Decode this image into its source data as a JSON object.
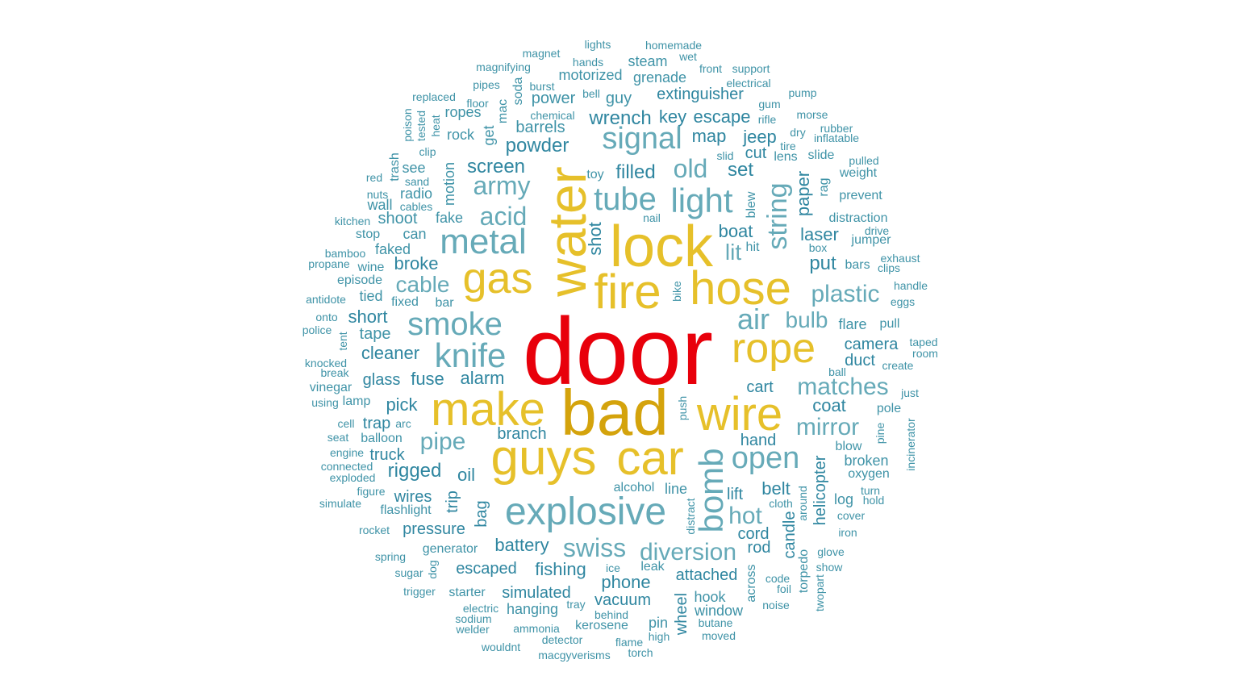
{
  "palette": {
    "top": "#e8000b",
    "gold_dark": "#d4a30c",
    "gold": "#e6c02a",
    "teal_light": "#66aab8",
    "teal": "#3f93a7",
    "teal_dark": "#2f86a0"
  },
  "words": [
    {
      "text": "door",
      "tier": "top"
    },
    {
      "text": "bad",
      "tier": "gold_dark"
    },
    {
      "text": "lock",
      "tier": "gold"
    },
    {
      "text": "water",
      "tier": "gold"
    },
    {
      "text": "fire",
      "tier": "gold"
    },
    {
      "text": "hose",
      "tier": "gold"
    },
    {
      "text": "guys",
      "tier": "gold"
    },
    {
      "text": "car",
      "tier": "gold"
    },
    {
      "text": "make",
      "tier": "gold"
    },
    {
      "text": "wire",
      "tier": "gold"
    },
    {
      "text": "gas",
      "tier": "gold"
    },
    {
      "text": "rope",
      "tier": "gold"
    },
    {
      "text": "explosive",
      "tier": "teal_light"
    },
    {
      "text": "metal",
      "tier": "teal_light"
    },
    {
      "text": "knife",
      "tier": "teal_light"
    },
    {
      "text": "smoke",
      "tier": "teal_light"
    },
    {
      "text": "bomb",
      "tier": "teal_light"
    },
    {
      "text": "light",
      "tier": "teal_light"
    },
    {
      "text": "tube",
      "tier": "teal_light"
    },
    {
      "text": "signal",
      "tier": "teal_light"
    },
    {
      "text": "open",
      "tier": "teal_light"
    },
    {
      "text": "string",
      "tier": "teal_light"
    },
    {
      "text": "diversion",
      "tier": "teal_light"
    },
    {
      "text": "swiss",
      "tier": "teal_light"
    },
    {
      "text": "air",
      "tier": "teal_light"
    },
    {
      "text": "matches",
      "tier": "teal_light"
    },
    {
      "text": "old",
      "tier": "teal_light"
    },
    {
      "text": "mirror",
      "tier": "teal_light"
    },
    {
      "text": "plastic",
      "tier": "teal_light"
    },
    {
      "text": "army",
      "tier": "teal_light"
    },
    {
      "text": "acid",
      "tier": "teal_light"
    },
    {
      "text": "pipe",
      "tier": "teal_light"
    },
    {
      "text": "hot",
      "tier": "teal_light"
    },
    {
      "text": "cable",
      "tier": "teal_light"
    },
    {
      "text": "bulb",
      "tier": "teal_light"
    },
    {
      "text": "lit",
      "tier": "teal_light"
    },
    {
      "text": "powder",
      "tier": "teal_dark"
    },
    {
      "text": "screen",
      "tier": "teal_dark"
    },
    {
      "text": "wrench",
      "tier": "teal_dark"
    },
    {
      "text": "key",
      "tier": "teal_dark"
    },
    {
      "text": "escape",
      "tier": "teal_dark"
    },
    {
      "text": "map",
      "tier": "teal_dark"
    },
    {
      "text": "jeep",
      "tier": "teal_dark"
    },
    {
      "text": "filled",
      "tier": "teal_dark"
    },
    {
      "text": "set",
      "tier": "teal_dark"
    },
    {
      "text": "cut",
      "tier": "teal_dark"
    },
    {
      "text": "shot",
      "tier": "teal_dark"
    },
    {
      "text": "paper",
      "tier": "teal_dark"
    },
    {
      "text": "boat",
      "tier": "teal_dark"
    },
    {
      "text": "laser",
      "tier": "teal_dark"
    },
    {
      "text": "put",
      "tier": "teal_dark"
    },
    {
      "text": "rigged",
      "tier": "teal_dark"
    },
    {
      "text": "oil",
      "tier": "teal_dark"
    },
    {
      "text": "battery",
      "tier": "teal_dark"
    },
    {
      "text": "fishing",
      "tier": "teal_dark"
    },
    {
      "text": "phone",
      "tier": "teal_dark"
    },
    {
      "text": "vacuum",
      "tier": "teal_dark"
    },
    {
      "text": "simulated",
      "tier": "teal_dark"
    },
    {
      "text": "attached",
      "tier": "teal_dark"
    },
    {
      "text": "helicopter",
      "tier": "teal_dark"
    },
    {
      "text": "coat",
      "tier": "teal_dark"
    },
    {
      "text": "camera",
      "tier": "teal_dark"
    },
    {
      "text": "duct",
      "tier": "teal_dark"
    },
    {
      "text": "cart",
      "tier": "teal_dark"
    },
    {
      "text": "pick",
      "tier": "teal_dark"
    },
    {
      "text": "alarm",
      "tier": "teal_dark"
    },
    {
      "text": "fuse",
      "tier": "teal_dark"
    },
    {
      "text": "glass",
      "tier": "teal_dark"
    },
    {
      "text": "cleaner",
      "tier": "teal_dark"
    },
    {
      "text": "broke",
      "tier": "teal_dark"
    },
    {
      "text": "short",
      "tier": "teal_dark"
    },
    {
      "text": "branch",
      "tier": "teal_dark"
    },
    {
      "text": "hand",
      "tier": "teal_dark"
    },
    {
      "text": "belt",
      "tier": "teal_dark"
    },
    {
      "text": "lift",
      "tier": "teal_dark"
    },
    {
      "text": "cord",
      "tier": "teal_dark"
    },
    {
      "text": "rod",
      "tier": "teal_dark"
    },
    {
      "text": "escaped",
      "tier": "teal_dark"
    },
    {
      "text": "pressure",
      "tier": "teal_dark"
    },
    {
      "text": "wires",
      "tier": "teal_dark"
    },
    {
      "text": "trip",
      "tier": "teal_dark"
    },
    {
      "text": "bag",
      "tier": "teal_dark"
    },
    {
      "text": "truck",
      "tier": "teal_dark"
    },
    {
      "text": "trap",
      "tier": "teal_dark"
    },
    {
      "text": "wheel",
      "tier": "teal_dark"
    },
    {
      "text": "candle",
      "tier": "teal_dark"
    },
    {
      "text": "extinguisher",
      "tier": "teal_dark"
    },
    {
      "text": "power",
      "tier": "teal"
    },
    {
      "text": "motorized",
      "tier": "teal"
    },
    {
      "text": "steam",
      "tier": "teal"
    },
    {
      "text": "grenade",
      "tier": "teal"
    },
    {
      "text": "guy",
      "tier": "teal"
    },
    {
      "text": "barrels",
      "tier": "teal"
    },
    {
      "text": "get",
      "tier": "teal"
    },
    {
      "text": "motion",
      "tier": "teal"
    },
    {
      "text": "rock",
      "tier": "teal"
    },
    {
      "text": "ropes",
      "tier": "teal"
    },
    {
      "text": "radio",
      "tier": "teal"
    },
    {
      "text": "see",
      "tier": "teal"
    },
    {
      "text": "shoot",
      "tier": "teal"
    },
    {
      "text": "fake",
      "tier": "teal"
    },
    {
      "text": "can",
      "tier": "teal"
    },
    {
      "text": "faked",
      "tier": "teal"
    },
    {
      "text": "stop",
      "tier": "teal"
    },
    {
      "text": "wall",
      "tier": "teal"
    },
    {
      "text": "wine",
      "tier": "teal"
    },
    {
      "text": "episode",
      "tier": "teal"
    },
    {
      "text": "tied",
      "tier": "teal"
    },
    {
      "text": "fixed",
      "tier": "teal"
    },
    {
      "text": "bar",
      "tier": "teal"
    },
    {
      "text": "tape",
      "tier": "teal"
    },
    {
      "text": "vinegar",
      "tier": "teal"
    },
    {
      "text": "lamp",
      "tier": "teal"
    },
    {
      "text": "balloon",
      "tier": "teal"
    },
    {
      "text": "flashlight",
      "tier": "teal"
    },
    {
      "text": "generator",
      "tier": "teal"
    },
    {
      "text": "starter",
      "tier": "teal"
    },
    {
      "text": "hanging",
      "tier": "teal"
    },
    {
      "text": "kerosene",
      "tier": "teal"
    },
    {
      "text": "pin",
      "tier": "teal"
    },
    {
      "text": "hook",
      "tier": "teal"
    },
    {
      "text": "window",
      "tier": "teal"
    },
    {
      "text": "across",
      "tier": "teal"
    },
    {
      "text": "torpedo",
      "tier": "teal"
    },
    {
      "text": "leak",
      "tier": "teal"
    },
    {
      "text": "alcohol",
      "tier": "teal"
    },
    {
      "text": "line",
      "tier": "teal"
    },
    {
      "text": "blow",
      "tier": "teal"
    },
    {
      "text": "broken",
      "tier": "teal"
    },
    {
      "text": "oxygen",
      "tier": "teal"
    },
    {
      "text": "log",
      "tier": "teal"
    },
    {
      "text": "flare",
      "tier": "teal"
    },
    {
      "text": "pole",
      "tier": "teal"
    },
    {
      "text": "pull",
      "tier": "teal"
    },
    {
      "text": "bars",
      "tier": "teal"
    },
    {
      "text": "jumper",
      "tier": "teal"
    },
    {
      "text": "distraction",
      "tier": "teal"
    },
    {
      "text": "prevent",
      "tier": "teal"
    },
    {
      "text": "weight",
      "tier": "teal"
    },
    {
      "text": "slide",
      "tier": "teal"
    },
    {
      "text": "lens",
      "tier": "teal"
    },
    {
      "text": "rag",
      "tier": "teal"
    },
    {
      "text": "toy",
      "tier": "teal"
    },
    {
      "text": "blew",
      "tier": "teal"
    },
    {
      "text": "hit",
      "tier": "teal"
    },
    {
      "text": "trash",
      "tier": "teal"
    },
    {
      "text": "mac",
      "tier": "teal"
    },
    {
      "text": "soda",
      "tier": "teal"
    },
    {
      "text": "magnet",
      "tier": "teal"
    },
    {
      "text": "lights",
      "tier": "teal"
    },
    {
      "text": "homemade",
      "tier": "teal"
    },
    {
      "text": "wet",
      "tier": "teal"
    },
    {
      "text": "magnifying",
      "tier": "teal"
    },
    {
      "text": "hands",
      "tier": "teal"
    },
    {
      "text": "front",
      "tier": "teal"
    },
    {
      "text": "support",
      "tier": "teal"
    },
    {
      "text": "pipes",
      "tier": "teal"
    },
    {
      "text": "burst",
      "tier": "teal"
    },
    {
      "text": "electrical",
      "tier": "teal"
    },
    {
      "text": "replaced",
      "tier": "teal"
    },
    {
      "text": "bell",
      "tier": "teal"
    },
    {
      "text": "pump",
      "tier": "teal"
    },
    {
      "text": "floor",
      "tier": "teal"
    },
    {
      "text": "gum",
      "tier": "teal"
    },
    {
      "text": "chemical",
      "tier": "teal"
    },
    {
      "text": "rifle",
      "tier": "teal"
    },
    {
      "text": "morse",
      "tier": "teal"
    },
    {
      "text": "poison",
      "tier": "teal"
    },
    {
      "text": "tested",
      "tier": "teal"
    },
    {
      "text": "heat",
      "tier": "teal"
    },
    {
      "text": "dry",
      "tier": "teal"
    },
    {
      "text": "rubber",
      "tier": "teal"
    },
    {
      "text": "inflatable",
      "tier": "teal"
    },
    {
      "text": "tire",
      "tier": "teal"
    },
    {
      "text": "clip",
      "tier": "teal"
    },
    {
      "text": "slid",
      "tier": "teal"
    },
    {
      "text": "pulled",
      "tier": "teal"
    },
    {
      "text": "red",
      "tier": "teal"
    },
    {
      "text": "sand",
      "tier": "teal"
    },
    {
      "text": "nuts",
      "tier": "teal"
    },
    {
      "text": "cables",
      "tier": "teal"
    },
    {
      "text": "kitchen",
      "tier": "teal"
    },
    {
      "text": "nail",
      "tier": "teal"
    },
    {
      "text": "drive",
      "tier": "teal"
    },
    {
      "text": "box",
      "tier": "teal"
    },
    {
      "text": "exhaust",
      "tier": "teal"
    },
    {
      "text": "clips",
      "tier": "teal"
    },
    {
      "text": "bamboo",
      "tier": "teal"
    },
    {
      "text": "propane",
      "tier": "teal"
    },
    {
      "text": "handle",
      "tier": "teal"
    },
    {
      "text": "antidote",
      "tier": "teal"
    },
    {
      "text": "bike",
      "tier": "teal"
    },
    {
      "text": "eggs",
      "tier": "teal"
    },
    {
      "text": "onto",
      "tier": "teal"
    },
    {
      "text": "police",
      "tier": "teal"
    },
    {
      "text": "tent",
      "tier": "teal"
    },
    {
      "text": "taped",
      "tier": "teal"
    },
    {
      "text": "room",
      "tier": "teal"
    },
    {
      "text": "knocked",
      "tier": "teal"
    },
    {
      "text": "break",
      "tier": "teal"
    },
    {
      "text": "ball",
      "tier": "teal"
    },
    {
      "text": "create",
      "tier": "teal"
    },
    {
      "text": "using",
      "tier": "teal"
    },
    {
      "text": "just",
      "tier": "teal"
    },
    {
      "text": "push",
      "tier": "teal"
    },
    {
      "text": "cell",
      "tier": "teal"
    },
    {
      "text": "arc",
      "tier": "teal"
    },
    {
      "text": "seat",
      "tier": "teal"
    },
    {
      "text": "incinerator",
      "tier": "teal"
    },
    {
      "text": "pine",
      "tier": "teal"
    },
    {
      "text": "engine",
      "tier": "teal"
    },
    {
      "text": "connected",
      "tier": "teal"
    },
    {
      "text": "exploded",
      "tier": "teal"
    },
    {
      "text": "figure",
      "tier": "teal"
    },
    {
      "text": "turn",
      "tier": "teal"
    },
    {
      "text": "hold",
      "tier": "teal"
    },
    {
      "text": "simulate",
      "tier": "teal"
    },
    {
      "text": "around",
      "tier": "teal"
    },
    {
      "text": "cloth",
      "tier": "teal"
    },
    {
      "text": "cover",
      "tier": "teal"
    },
    {
      "text": "rocket",
      "tier": "teal"
    },
    {
      "text": "distract",
      "tier": "teal"
    },
    {
      "text": "iron",
      "tier": "teal"
    },
    {
      "text": "spring",
      "tier": "teal"
    },
    {
      "text": "glove",
      "tier": "teal"
    },
    {
      "text": "sugar",
      "tier": "teal"
    },
    {
      "text": "dog",
      "tier": "teal"
    },
    {
      "text": "ice",
      "tier": "teal"
    },
    {
      "text": "show",
      "tier": "teal"
    },
    {
      "text": "code",
      "tier": "teal"
    },
    {
      "text": "foil",
      "tier": "teal"
    },
    {
      "text": "trigger",
      "tier": "teal"
    },
    {
      "text": "twopart",
      "tier": "teal"
    },
    {
      "text": "tray",
      "tier": "teal"
    },
    {
      "text": "noise",
      "tier": "teal"
    },
    {
      "text": "electric",
      "tier": "teal"
    },
    {
      "text": "behind",
      "tier": "teal"
    },
    {
      "text": "sodium",
      "tier": "teal"
    },
    {
      "text": "welder",
      "tier": "teal"
    },
    {
      "text": "ammonia",
      "tier": "teal"
    },
    {
      "text": "butane",
      "tier": "teal"
    },
    {
      "text": "detector",
      "tier": "teal"
    },
    {
      "text": "high",
      "tier": "teal"
    },
    {
      "text": "moved",
      "tier": "teal"
    },
    {
      "text": "wouldnt",
      "tier": "teal"
    },
    {
      "text": "flame",
      "tier": "teal"
    },
    {
      "text": "torch",
      "tier": "teal"
    },
    {
      "text": "macgyverisms",
      "tier": "teal"
    }
  ]
}
